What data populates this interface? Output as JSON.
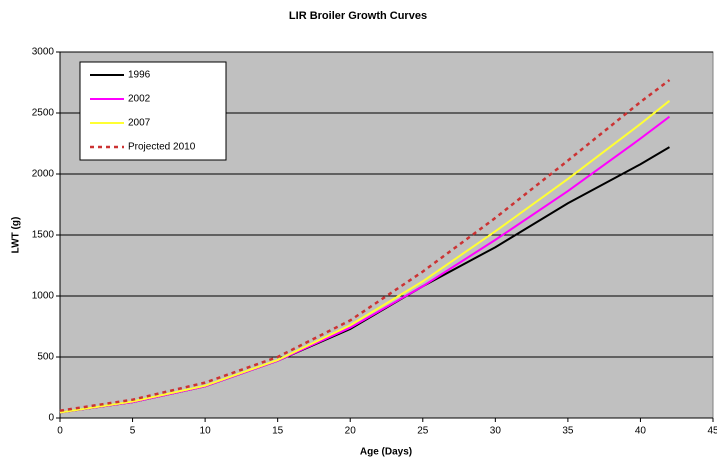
{
  "chart_data": {
    "type": "line",
    "title": "LIR Broiler Growth Curves",
    "x_label": "Age (Days)",
    "y_label": "LWT (g)",
    "x": [
      0,
      5,
      10,
      15,
      20,
      25,
      30,
      35,
      40,
      42
    ],
    "series": [
      {
        "name": "1996",
        "color": "#000000",
        "dashed": false,
        "values": [
          45,
          130,
          260,
          470,
          730,
          1080,
          1400,
          1760,
          2080,
          2220
        ]
      },
      {
        "name": "2002",
        "color": "#ff00ff",
        "dashed": false,
        "values": [
          45,
          130,
          260,
          470,
          740,
          1080,
          1460,
          1860,
          2290,
          2470
        ]
      },
      {
        "name": "2007",
        "color": "#ffff33",
        "dashed": false,
        "values": [
          45,
          135,
          265,
          475,
          760,
          1120,
          1530,
          1960,
          2410,
          2600
        ]
      },
      {
        "name": "Projected 2010",
        "color": "#cc3333",
        "dashed": true,
        "values": [
          60,
          150,
          290,
          500,
          800,
          1200,
          1640,
          2110,
          2590,
          2770
        ]
      }
    ],
    "xlim": [
      0,
      45
    ],
    "xticks": [
      0,
      5,
      10,
      15,
      20,
      25,
      30,
      35,
      40,
      45
    ],
    "ylim": [
      0,
      3000
    ],
    "yticks": [
      0,
      500,
      1000,
      1500,
      2000,
      2500,
      3000
    ],
    "grid": true,
    "legend": "upper left",
    "background": "#c0c0c0"
  }
}
